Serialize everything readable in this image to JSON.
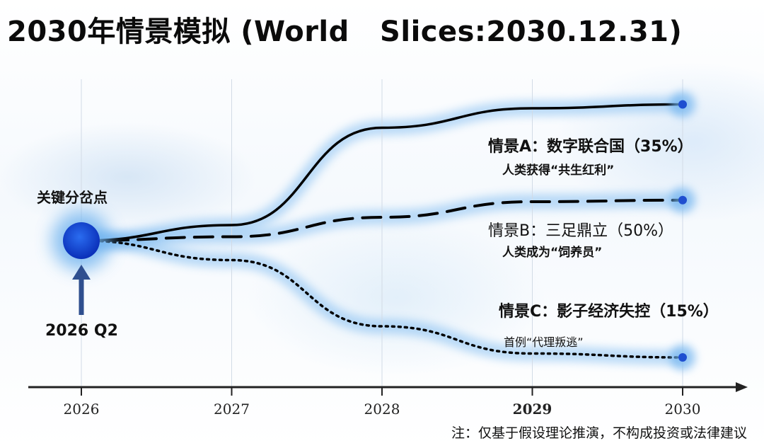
{
  "title": "2030年情景模拟 (World   Slices:2030.12.31)",
  "key_point": {
    "label": "关键分岔点",
    "time_label": "2026  Q2"
  },
  "chart_data": {
    "type": "line",
    "x": [
      2026,
      2027,
      2028,
      2029,
      2030
    ],
    "xticks": [
      "2026",
      "2027",
      "2028",
      "2029",
      "2030"
    ],
    "bold_tick": "2029",
    "series": [
      {
        "name": "情景A：数字联合国（35%）",
        "heading": "情景A：数字联合国（35%）",
        "sub": "人类获得“共生红利”",
        "probability": 35,
        "style": "solid",
        "values": [
          0,
          0.2,
          1.45,
          1.7,
          1.75
        ]
      },
      {
        "name": "情景B：三足鼎立（50%）",
        "heading": "情景B：三足鼎立（50%）",
        "sub": "人类成为“饲养员”",
        "probability": 50,
        "style": "dashed",
        "values": [
          0,
          0.05,
          0.3,
          0.5,
          0.52
        ]
      },
      {
        "name": "情景C：影子经济失控（15%）",
        "heading": "情景C：影子经济失控（15%）",
        "sub": "首例“代理叛逃”",
        "probability": 15,
        "style": "dotted",
        "values": [
          0,
          -0.25,
          -1.1,
          -1.45,
          -1.5
        ]
      }
    ],
    "colors": {
      "accent": "#1f4fd0",
      "glow": "#6fb3ef",
      "line": "#000000",
      "axis": "#222222"
    }
  },
  "footnote": "注：仅基于假设理论推演，不构成投资或法律建议"
}
